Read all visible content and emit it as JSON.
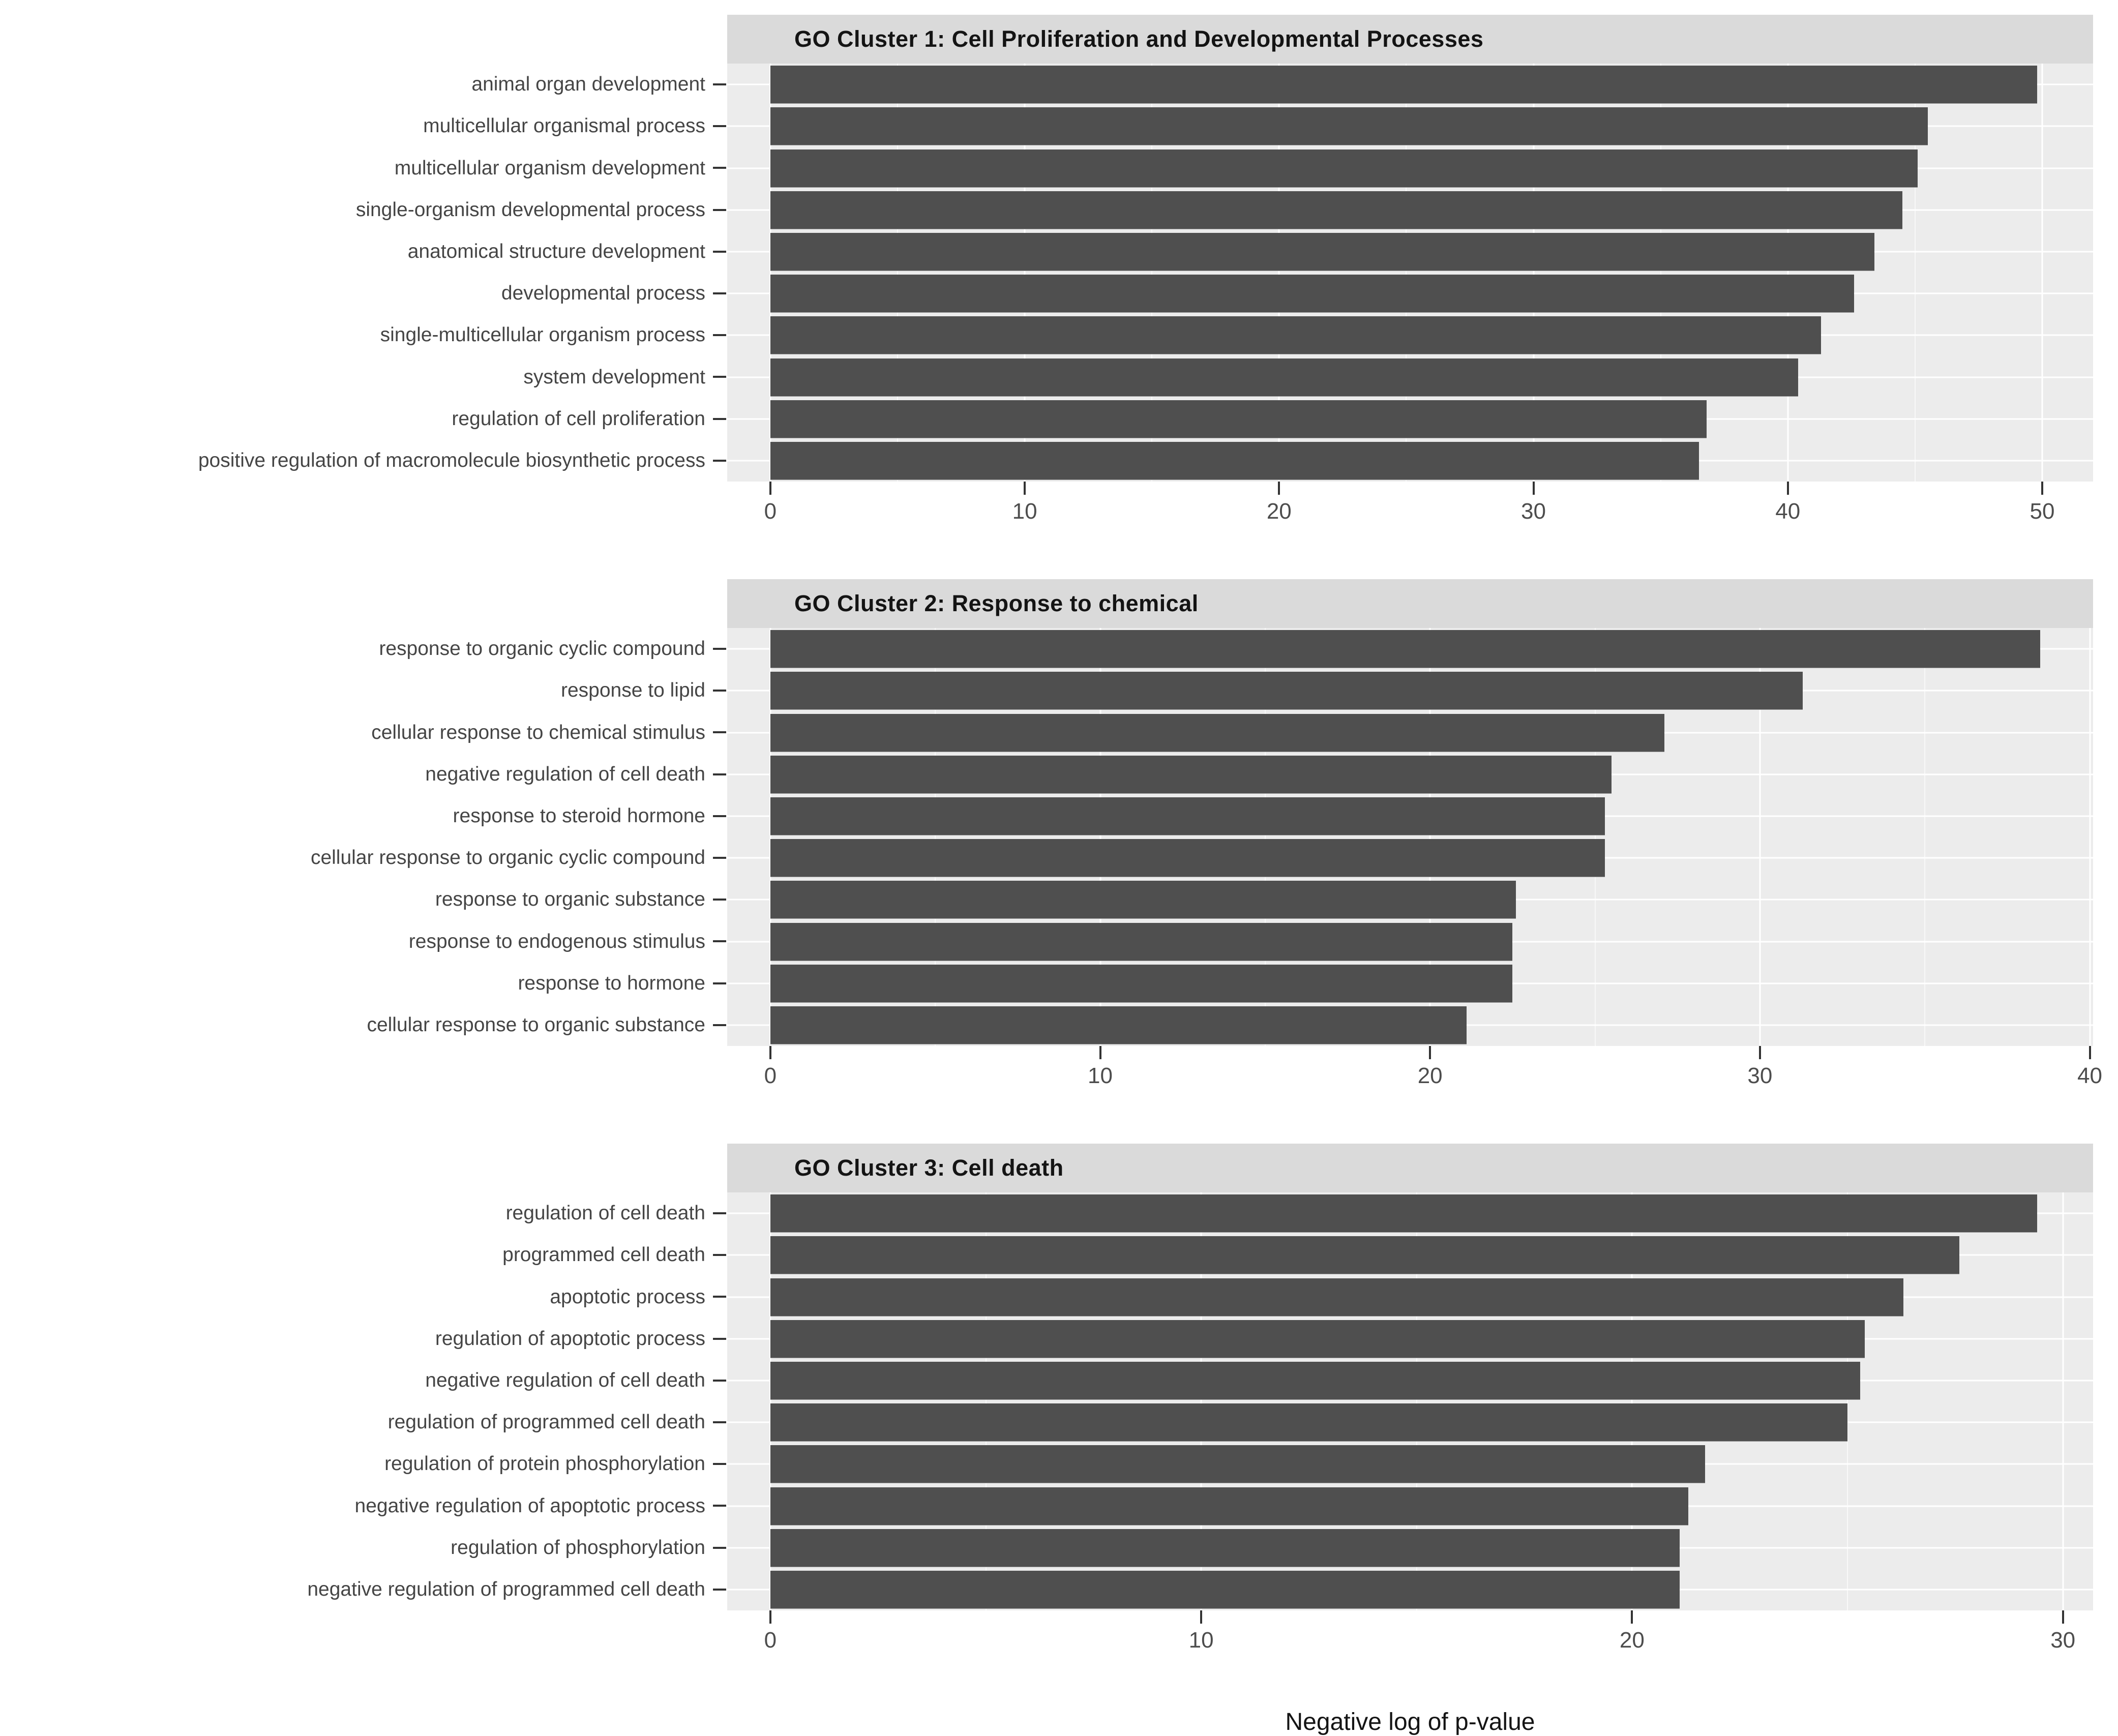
{
  "xlabel": "Negative log of p-value",
  "colors": {
    "bar_fill": "#4f4f4f",
    "panel_background": "#ececec",
    "strip_background": "#dadada",
    "gridline": "#ffffff",
    "tick_mark": "#333333",
    "axis_text": "#4d4d4d",
    "label_text": "#454545",
    "title_text": "#141414"
  },
  "chart_data": [
    {
      "type": "bar",
      "orientation": "horizontal",
      "title": "GO Cluster 1: Cell Proliferation and Developmental Processes",
      "categories": [
        "animal organ development",
        "multicellular organismal process",
        "multicellular organism development",
        "single-organism developmental process",
        "anatomical structure development",
        "developmental process",
        "single-multicellular organism process",
        "system development",
        "regulation of cell proliferation",
        "positive regulation of macromolecule biosynthetic process"
      ],
      "values": [
        49.8,
        45.5,
        45.1,
        44.5,
        43.4,
        42.6,
        41.3,
        40.4,
        36.8,
        36.5
      ],
      "xlabel": "Negative log of p-value",
      "x_ticks": [
        0,
        10,
        20,
        30,
        40,
        50
      ],
      "x_minor_ticks": [
        5,
        15,
        25,
        35,
        45
      ],
      "xlim": [
        0,
        52
      ],
      "grid": "on",
      "legend": "none"
    },
    {
      "type": "bar",
      "orientation": "horizontal",
      "title": "GO Cluster 2: Response to chemical",
      "categories": [
        "response to organic cyclic compound",
        "response to lipid",
        "cellular response to chemical stimulus",
        "negative regulation of cell death",
        "response to steroid hormone",
        "cellular response to organic cyclic compound",
        "response to organic substance",
        "response to endogenous stimulus",
        "response to hormone",
        "cellular response to organic substance"
      ],
      "values": [
        38.5,
        31.3,
        27.1,
        25.5,
        25.3,
        25.3,
        22.6,
        22.5,
        22.5,
        21.1
      ],
      "xlabel": "Negative log of p-value",
      "x_ticks": [
        0,
        10,
        20,
        30,
        40
      ],
      "x_minor_ticks": [
        5,
        15,
        25,
        35
      ],
      "xlim": [
        0,
        40.1
      ],
      "grid": "on",
      "legend": "none"
    },
    {
      "type": "bar",
      "orientation": "horizontal",
      "title": "GO Cluster 3: Cell death",
      "categories": [
        "regulation of cell death",
        "programmed cell death",
        "apoptotic process",
        "regulation of apoptotic process",
        "negative regulation of cell death",
        "regulation of programmed cell death",
        "regulation of protein phosphorylation",
        "negative regulation of apoptotic process",
        "regulation of phosphorylation",
        "negative regulation of programmed cell death"
      ],
      "values": [
        29.4,
        27.6,
        26.3,
        25.4,
        25.3,
        25.0,
        21.7,
        21.3,
        21.1,
        21.1
      ],
      "xlabel": "Negative log of p-value",
      "x_ticks": [
        0,
        10,
        20,
        30
      ],
      "x_minor_ticks": [
        5,
        15,
        25
      ],
      "xlim": [
        0,
        30.7
      ],
      "grid": "on",
      "legend": "none"
    }
  ]
}
